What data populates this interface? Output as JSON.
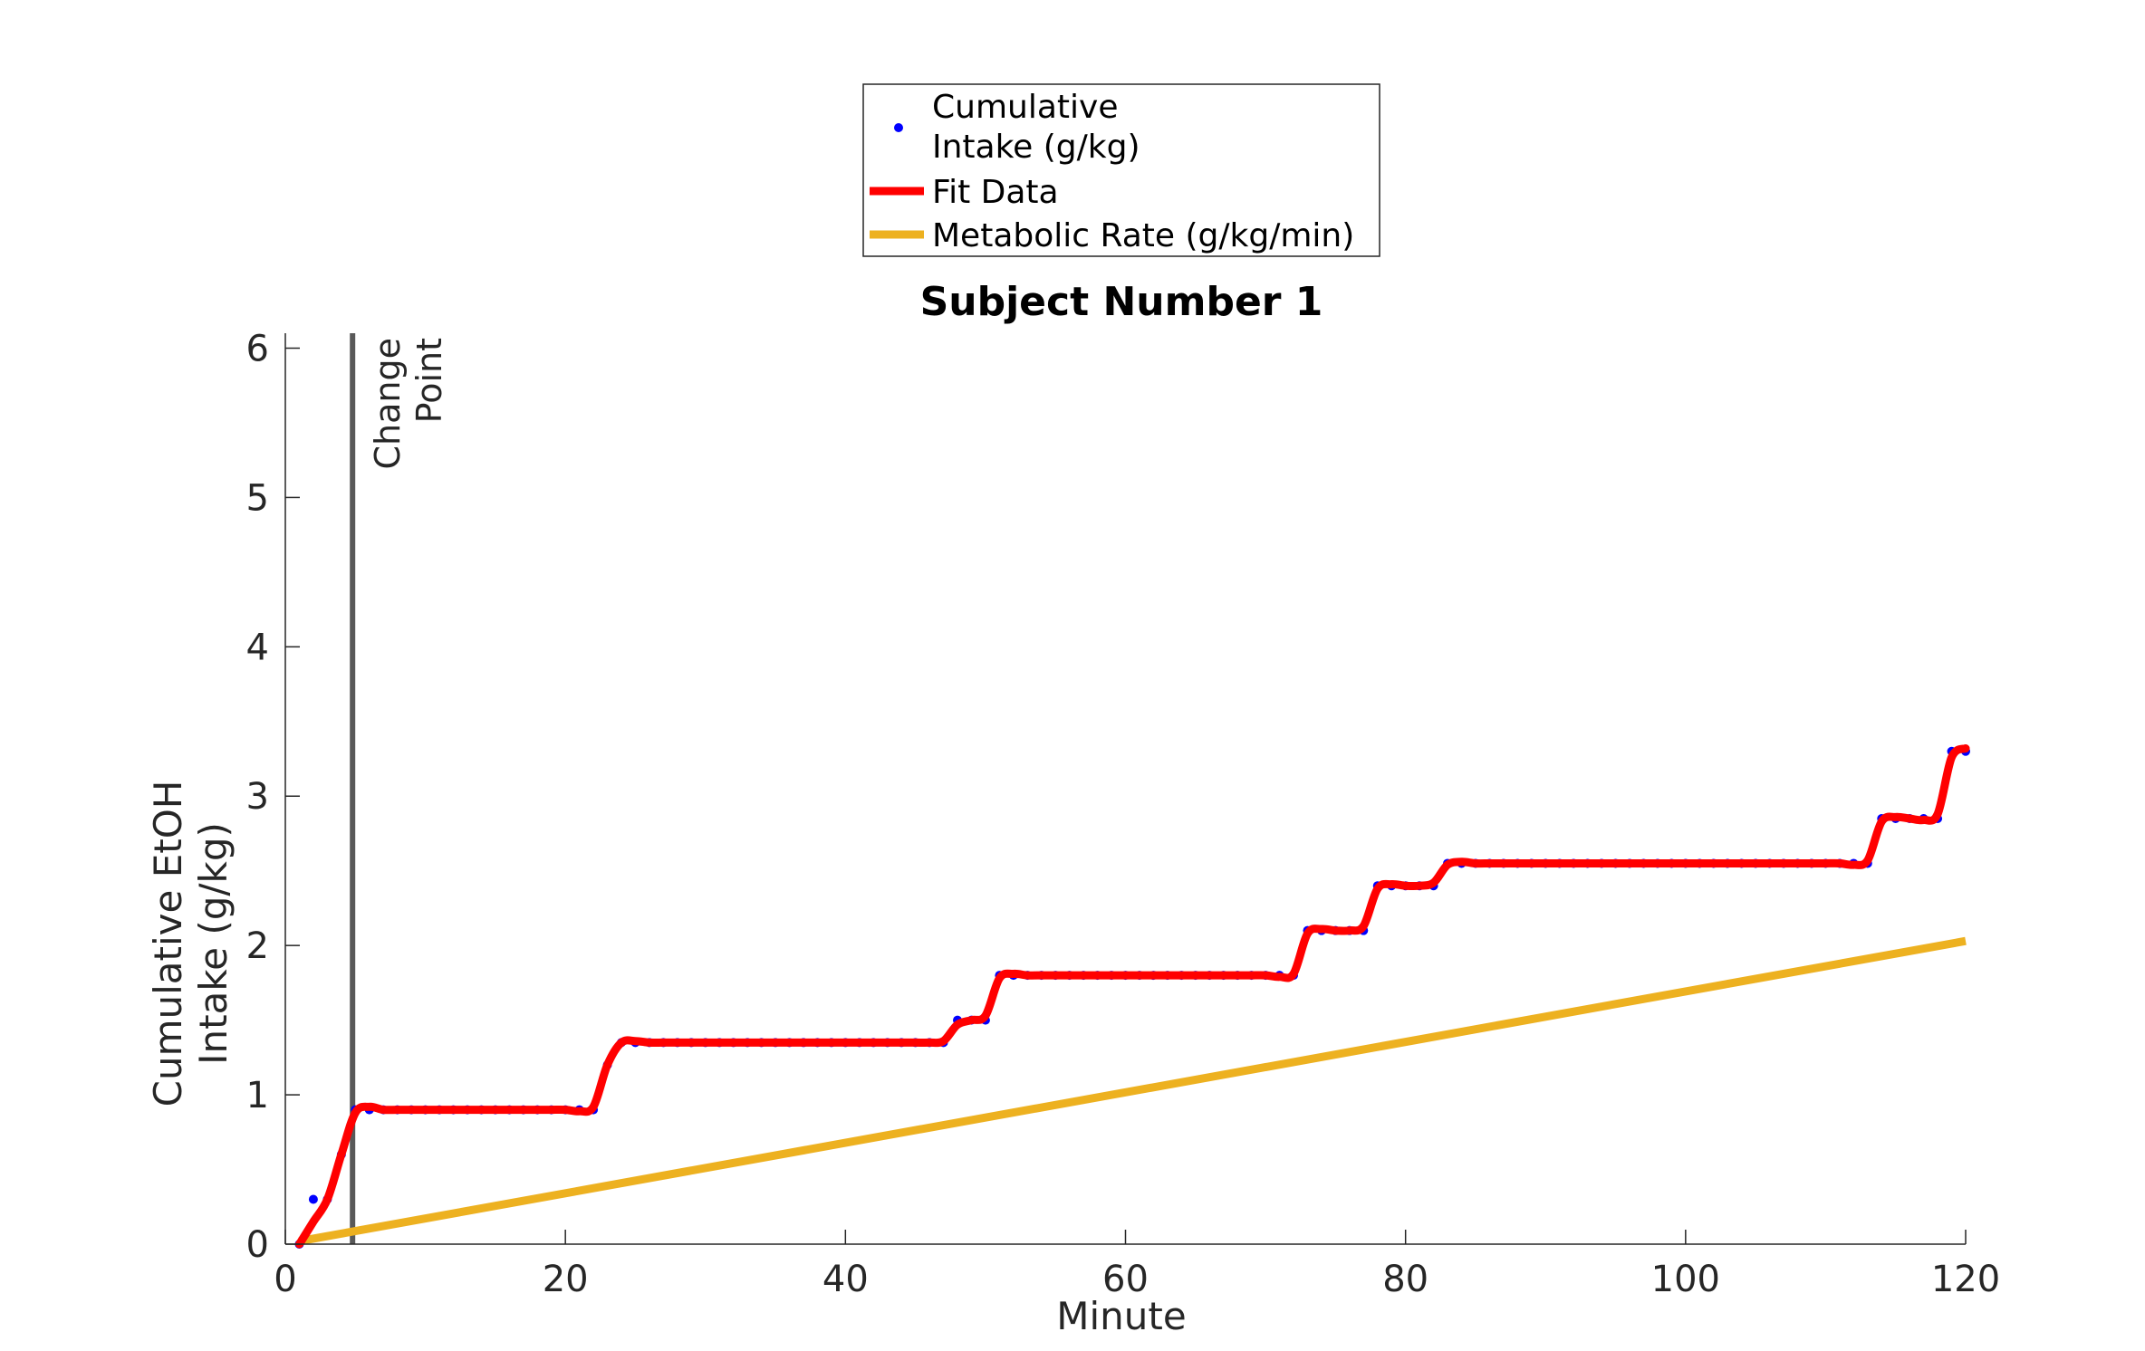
{
  "chart_data": {
    "type": "line",
    "title": "Subject Number 1",
    "xlabel": "Minute",
    "ylabel": [
      "Cumulative EtOH",
      "Intake (g/kg)"
    ],
    "xlim": [
      0,
      120
    ],
    "ylim": [
      0,
      6.1
    ],
    "xticks": [
      "0",
      "20",
      "40",
      "60",
      "80",
      "100",
      "120"
    ],
    "yticks": [
      "0",
      "1",
      "2",
      "3",
      "4",
      "5",
      "6"
    ],
    "grid": false,
    "legend": {
      "placement": "outside-top",
      "entries": [
        {
          "label_lines": [
            "Cumulative",
            "Intake (g/kg)"
          ],
          "color": "#0000ff",
          "marker": "dot"
        },
        {
          "label_lines": [
            "Fit Data"
          ],
          "color": "#ff0000",
          "marker": "line"
        },
        {
          "label_lines": [
            "Metabolic Rate (g/kg/min)"
          ],
          "color": "#edb120",
          "marker": "line"
        }
      ]
    },
    "annotation": {
      "label_lines": [
        "Change",
        "Point"
      ],
      "x": 4.8,
      "color": "#595959"
    },
    "series": [
      {
        "name": "Cumulative Intake (g/kg)",
        "color": "#0000ff",
        "style": "dots",
        "x": [
          1,
          2,
          3,
          4,
          5,
          6,
          7,
          8,
          9,
          10,
          11,
          12,
          13,
          14,
          15,
          16,
          17,
          18,
          19,
          20,
          21,
          22,
          23,
          24,
          25,
          26,
          27,
          28,
          29,
          30,
          31,
          32,
          33,
          34,
          35,
          36,
          37,
          38,
          39,
          40,
          41,
          42,
          43,
          44,
          45,
          46,
          47,
          48,
          49,
          50,
          51,
          52,
          53,
          54,
          55,
          56,
          57,
          58,
          59,
          60,
          61,
          62,
          63,
          64,
          65,
          66,
          67,
          68,
          69,
          70,
          71,
          72,
          73,
          74,
          75,
          76,
          77,
          78,
          79,
          80,
          81,
          82,
          83,
          84,
          85,
          86,
          87,
          88,
          89,
          90,
          91,
          92,
          93,
          94,
          95,
          96,
          97,
          98,
          99,
          100,
          101,
          102,
          103,
          104,
          105,
          106,
          107,
          108,
          109,
          110,
          111,
          112,
          113,
          114,
          115,
          116,
          117,
          118,
          119,
          120
        ],
        "y": [
          0,
          0.3,
          0.3,
          0.6,
          0.9,
          0.9,
          0.9,
          0.9,
          0.9,
          0.9,
          0.9,
          0.9,
          0.9,
          0.9,
          0.9,
          0.9,
          0.9,
          0.9,
          0.9,
          0.9,
          0.9,
          0.9,
          1.2,
          1.35,
          1.35,
          1.35,
          1.35,
          1.35,
          1.35,
          1.35,
          1.35,
          1.35,
          1.35,
          1.35,
          1.35,
          1.35,
          1.35,
          1.35,
          1.35,
          1.35,
          1.35,
          1.35,
          1.35,
          1.35,
          1.35,
          1.35,
          1.35,
          1.5,
          1.5,
          1.5,
          1.8,
          1.8,
          1.8,
          1.8,
          1.8,
          1.8,
          1.8,
          1.8,
          1.8,
          1.8,
          1.8,
          1.8,
          1.8,
          1.8,
          1.8,
          1.8,
          1.8,
          1.8,
          1.8,
          1.8,
          1.8,
          1.8,
          2.1,
          2.1,
          2.1,
          2.1,
          2.1,
          2.4,
          2.4,
          2.4,
          2.4,
          2.4,
          2.55,
          2.55,
          2.55,
          2.55,
          2.55,
          2.55,
          2.55,
          2.55,
          2.55,
          2.55,
          2.55,
          2.55,
          2.55,
          2.55,
          2.55,
          2.55,
          2.55,
          2.55,
          2.55,
          2.55,
          2.55,
          2.55,
          2.55,
          2.55,
          2.55,
          2.55,
          2.55,
          2.55,
          2.55,
          2.55,
          2.55,
          2.85,
          2.85,
          2.85,
          2.85,
          2.85,
          3.3,
          3.3
        ]
      },
      {
        "name": "Fit Data",
        "color": "#ff0000",
        "style": "smooth-line",
        "x": [
          1,
          2,
          3,
          4,
          5,
          6,
          7,
          8,
          9,
          10,
          11,
          12,
          13,
          14,
          15,
          16,
          17,
          18,
          19,
          20,
          21,
          22,
          23,
          24,
          25,
          26,
          27,
          28,
          29,
          30,
          31,
          32,
          33,
          34,
          35,
          36,
          37,
          38,
          39,
          40,
          41,
          42,
          43,
          44,
          45,
          46,
          47,
          48,
          49,
          50,
          51,
          52,
          53,
          54,
          55,
          56,
          57,
          58,
          59,
          60,
          61,
          62,
          63,
          64,
          65,
          66,
          67,
          68,
          69,
          70,
          71,
          72,
          73,
          74,
          75,
          76,
          77,
          78,
          79,
          80,
          81,
          82,
          83,
          84,
          85,
          86,
          87,
          88,
          89,
          90,
          91,
          92,
          93,
          94,
          95,
          96,
          97,
          98,
          99,
          100,
          101,
          102,
          103,
          104,
          105,
          106,
          107,
          108,
          109,
          110,
          111,
          112,
          113,
          114,
          115,
          116,
          117,
          118,
          119,
          120
        ],
        "y": [
          0,
          0.15,
          0.3,
          0.6,
          0.88,
          0.92,
          0.9,
          0.9,
          0.9,
          0.9,
          0.9,
          0.9,
          0.9,
          0.9,
          0.9,
          0.9,
          0.9,
          0.9,
          0.9,
          0.9,
          0.89,
          0.92,
          1.2,
          1.35,
          1.36,
          1.35,
          1.35,
          1.35,
          1.35,
          1.35,
          1.35,
          1.35,
          1.35,
          1.35,
          1.35,
          1.35,
          1.35,
          1.35,
          1.35,
          1.35,
          1.35,
          1.35,
          1.35,
          1.35,
          1.35,
          1.35,
          1.36,
          1.47,
          1.5,
          1.53,
          1.78,
          1.81,
          1.8,
          1.8,
          1.8,
          1.8,
          1.8,
          1.8,
          1.8,
          1.8,
          1.8,
          1.8,
          1.8,
          1.8,
          1.8,
          1.8,
          1.8,
          1.8,
          1.8,
          1.8,
          1.79,
          1.81,
          2.08,
          2.11,
          2.1,
          2.1,
          2.13,
          2.38,
          2.41,
          2.4,
          2.4,
          2.42,
          2.54,
          2.56,
          2.55,
          2.55,
          2.55,
          2.55,
          2.55,
          2.55,
          2.55,
          2.55,
          2.55,
          2.55,
          2.55,
          2.55,
          2.55,
          2.55,
          2.55,
          2.55,
          2.55,
          2.55,
          2.55,
          2.55,
          2.55,
          2.55,
          2.55,
          2.55,
          2.55,
          2.55,
          2.55,
          2.54,
          2.57,
          2.83,
          2.86,
          2.85,
          2.84,
          2.88,
          3.26,
          3.32
        ]
      },
      {
        "name": "Metabolic Rate (g/kg/min)",
        "color": "#edb120",
        "style": "line",
        "x": [
          1,
          120
        ],
        "y": [
          0.02,
          2.03
        ]
      }
    ]
  }
}
